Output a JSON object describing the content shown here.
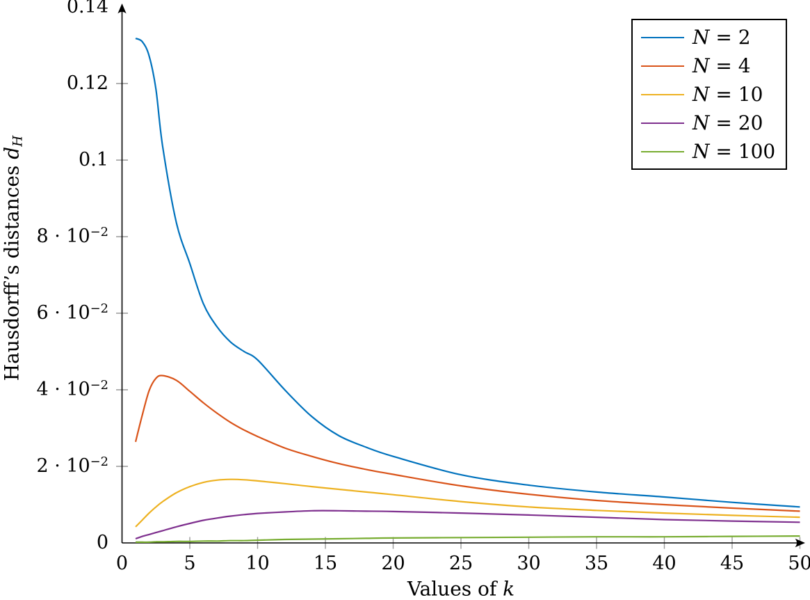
{
  "figure": {
    "background": "#ffffff",
    "text_color": "#000000"
  },
  "chart_data": {
    "type": "line",
    "title": "",
    "xlabel": "Values of $k$",
    "ylabel": "Hausdorff’s distances $d_H$",
    "xlim": [
      0,
      50
    ],
    "ylim": [
      0,
      0.14
    ],
    "grid": false,
    "axis_color": "#000000",
    "tick_color": "#999999",
    "axis_arrows": true,
    "legend": {
      "position": "top-right",
      "border_color": "#000000",
      "background": "#ffffff"
    },
    "x_ticks": [
      {
        "v": 0,
        "label": "0",
        "mark": false
      },
      {
        "v": 5,
        "label": "5",
        "mark": true
      },
      {
        "v": 10,
        "label": "10",
        "mark": true
      },
      {
        "v": 15,
        "label": "15",
        "mark": true
      },
      {
        "v": 20,
        "label": "20",
        "mark": true
      },
      {
        "v": 25,
        "label": "25",
        "mark": true
      },
      {
        "v": 30,
        "label": "30",
        "mark": true
      },
      {
        "v": 35,
        "label": "35",
        "mark": true
      },
      {
        "v": 40,
        "label": "40",
        "mark": true
      },
      {
        "v": 45,
        "label": "45",
        "mark": true
      },
      {
        "v": 50,
        "label": "50",
        "mark": true
      }
    ],
    "y_ticks": [
      {
        "v": 0.0,
        "label": "0",
        "mark": false
      },
      {
        "v": 0.02,
        "label": "2 · 10^{−2}",
        "mark": true
      },
      {
        "v": 0.04,
        "label": "4 · 10^{−2}",
        "mark": true
      },
      {
        "v": 0.06,
        "label": "6 · 10^{−2}",
        "mark": true
      },
      {
        "v": 0.08,
        "label": "8 · 10^{−2}",
        "mark": true
      },
      {
        "v": 0.1,
        "label": "0.1",
        "mark": true
      },
      {
        "v": 0.12,
        "label": "0.12",
        "mark": true
      },
      {
        "v": 0.14,
        "label": "0.14",
        "mark": false
      }
    ],
    "x": [
      1,
      1.5,
      2,
      2.5,
      3,
      4,
      5,
      6,
      7,
      8,
      9,
      10,
      12,
      14,
      16,
      18,
      20,
      25,
      30,
      35,
      40,
      45,
      50
    ],
    "series": [
      {
        "name": "$N$ = 2",
        "color": "#0072bd",
        "y": [
          0.1318,
          0.1309,
          0.1272,
          0.1185,
          0.1035,
          0.0838,
          0.073,
          0.0625,
          0.0565,
          0.0525,
          0.05,
          0.0478,
          0.04,
          0.033,
          0.028,
          0.025,
          0.0226,
          0.0178,
          0.0151,
          0.0133,
          0.012,
          0.0106,
          0.0094
        ]
      },
      {
        "name": "$N$ = 4",
        "color": "#d95319",
        "y": [
          0.0264,
          0.0335,
          0.0398,
          0.043,
          0.0437,
          0.0425,
          0.0396,
          0.0366,
          0.0339,
          0.0315,
          0.0295,
          0.0278,
          0.0248,
          0.0226,
          0.0207,
          0.0192,
          0.0179,
          0.0149,
          0.0127,
          0.0111,
          0.01,
          0.0091,
          0.0083
        ]
      },
      {
        "name": "$N$ = 10",
        "color": "#edb120",
        "y": [
          0.0042,
          0.006,
          0.0078,
          0.0094,
          0.0108,
          0.0131,
          0.0147,
          0.0158,
          0.0164,
          0.0166,
          0.0165,
          0.0162,
          0.0155,
          0.0147,
          0.014,
          0.0133,
          0.0126,
          0.0108,
          0.0094,
          0.0085,
          0.0078,
          0.0072,
          0.0067
        ]
      },
      {
        "name": "$N$ = 20",
        "color": "#7e2f8e",
        "y": [
          0.0011,
          0.0017,
          0.0022,
          0.0027,
          0.0032,
          0.0042,
          0.0051,
          0.0059,
          0.0065,
          0.007,
          0.0074,
          0.0077,
          0.0081,
          0.0084,
          0.0084,
          0.0083,
          0.0082,
          0.0078,
          0.0073,
          0.0067,
          0.0061,
          0.0057,
          0.0054
        ]
      },
      {
        "name": "$N$ = 100",
        "color": "#77ac30",
        "y": [
          0.0002,
          0.0002,
          0.0002,
          0.0003,
          0.0003,
          0.0004,
          0.0004,
          0.0005,
          0.0005,
          0.0006,
          0.0006,
          0.0007,
          0.0009,
          0.001,
          0.0011,
          0.0012,
          0.0013,
          0.0014,
          0.0015,
          0.0016,
          0.0016,
          0.0017,
          0.0018
        ]
      }
    ]
  }
}
